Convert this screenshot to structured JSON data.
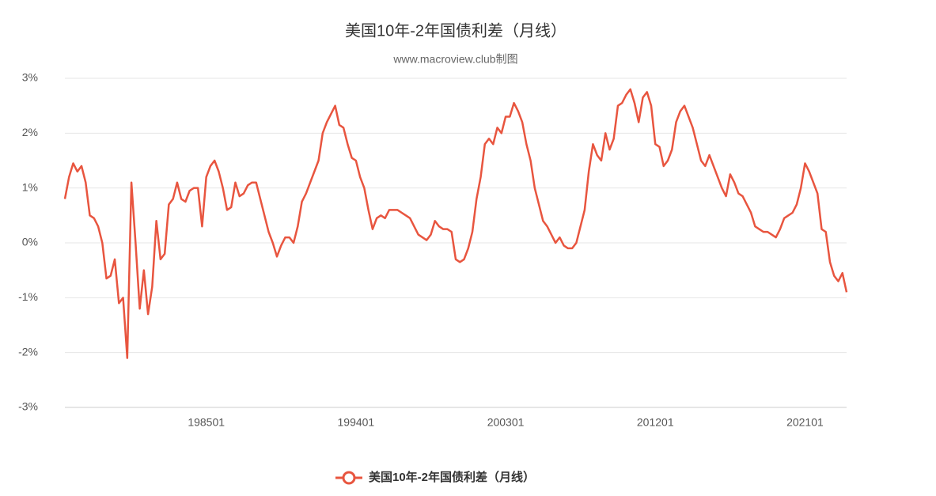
{
  "chart_data": {
    "type": "line",
    "title": "美国10年-2年国债利差（月线）",
    "subtitle": "www.macroview.club制图",
    "categories": [
      null,
      null,
      null,
      null,
      null,
      null,
      null,
      null,
      null,
      null,
      null,
      null,
      null,
      null,
      null,
      null,
      null,
      null,
      null,
      null,
      null,
      null,
      null,
      null,
      null,
      null,
      null,
      null,
      null,
      null,
      null,
      null,
      null,
      null,
      "198501",
      null,
      null,
      null,
      null,
      null,
      null,
      null,
      null,
      null,
      null,
      null,
      null,
      null,
      null,
      null,
      null,
      null,
      null,
      null,
      null,
      null,
      null,
      null,
      null,
      null,
      null,
      null,
      null,
      null,
      null,
      null,
      null,
      null,
      null,
      null,
      "199401",
      null,
      null,
      null,
      null,
      null,
      null,
      null,
      null,
      null,
      null,
      null,
      null,
      null,
      null,
      null,
      null,
      null,
      null,
      null,
      null,
      null,
      null,
      null,
      null,
      null,
      null,
      null,
      null,
      null,
      null,
      null,
      null,
      null,
      null,
      null,
      "200301",
      null,
      null,
      null,
      null,
      null,
      null,
      null,
      null,
      null,
      null,
      null,
      null,
      null,
      null,
      null,
      null,
      null,
      null,
      null,
      null,
      null,
      null,
      null,
      null,
      null,
      null,
      null,
      null,
      null,
      null,
      null,
      null,
      null,
      null,
      null,
      "201201",
      null,
      null,
      null,
      null,
      null,
      null,
      null,
      null,
      null,
      null,
      null,
      null,
      null,
      null,
      null,
      null,
      null,
      null,
      null,
      null,
      null,
      null,
      null,
      null,
      null,
      null,
      null,
      null,
      null,
      null,
      null,
      null,
      null,
      null,
      null,
      "202101",
      null,
      null,
      null,
      null,
      null,
      null,
      null,
      null,
      null,
      null
    ],
    "series": [
      {
        "name": "美国10年-2年国债利差（月线）",
        "color": "#e8553f",
        "values": [
          0.8,
          1.2,
          1.45,
          1.3,
          1.4,
          1.1,
          0.5,
          0.45,
          0.3,
          0.0,
          -0.65,
          -0.6,
          -0.3,
          -1.1,
          -1.0,
          -2.1,
          1.1,
          0.0,
          -1.2,
          -0.5,
          -1.3,
          -0.8,
          0.4,
          -0.3,
          -0.2,
          0.7,
          0.8,
          1.1,
          0.8,
          0.75,
          0.95,
          1.0,
          1.0,
          0.3,
          1.2,
          1.4,
          1.5,
          1.3,
          1.0,
          0.6,
          0.65,
          1.1,
          0.85,
          0.9,
          1.05,
          1.1,
          1.1,
          0.8,
          0.5,
          0.2,
          0.0,
          -0.25,
          -0.05,
          0.1,
          0.1,
          0.0,
          0.3,
          0.75,
          0.9,
          1.1,
          1.3,
          1.5,
          2.0,
          2.2,
          2.35,
          2.5,
          2.15,
          2.1,
          1.8,
          1.55,
          1.5,
          1.2,
          1.0,
          0.6,
          0.25,
          0.45,
          0.5,
          0.45,
          0.6,
          0.6,
          0.6,
          0.55,
          0.5,
          0.45,
          0.3,
          0.15,
          0.1,
          0.05,
          0.15,
          0.4,
          0.3,
          0.25,
          0.25,
          0.2,
          -0.3,
          -0.35,
          -0.3,
          -0.1,
          0.2,
          0.8,
          1.2,
          1.8,
          1.9,
          1.8,
          2.1,
          2.0,
          2.3,
          2.3,
          2.55,
          2.4,
          2.2,
          1.8,
          1.5,
          1.0,
          0.7,
          0.4,
          0.3,
          0.15,
          0.0,
          0.1,
          -0.05,
          -0.1,
          -0.1,
          0.0,
          0.3,
          0.6,
          1.3,
          1.8,
          1.6,
          1.5,
          2.0,
          1.7,
          1.9,
          2.5,
          2.55,
          2.7,
          2.8,
          2.55,
          2.2,
          2.65,
          2.75,
          2.5,
          1.8,
          1.75,
          1.4,
          1.5,
          1.7,
          2.2,
          2.4,
          2.5,
          2.3,
          2.1,
          1.8,
          1.5,
          1.4,
          1.6,
          1.4,
          1.2,
          1.0,
          0.85,
          1.25,
          1.1,
          0.9,
          0.85,
          0.7,
          0.55,
          0.3,
          0.25,
          0.2,
          0.2,
          0.15,
          0.1,
          0.25,
          0.45,
          0.5,
          0.55,
          0.7,
          1.0,
          1.45,
          1.3,
          1.1,
          0.9,
          0.25,
          0.2,
          -0.35,
          -0.6,
          -0.7,
          -0.55,
          -0.9
        ]
      }
    ],
    "ylim": [
      -3,
      3
    ],
    "yticks": [
      {
        "value": -3,
        "label": "-3%"
      },
      {
        "value": -2,
        "label": "-2%"
      },
      {
        "value": -1,
        "label": "-1%"
      },
      {
        "value": 0,
        "label": "0%"
      },
      {
        "value": 1,
        "label": "1%"
      },
      {
        "value": 2,
        "label": "2%"
      },
      {
        "value": 3,
        "label": "3%"
      }
    ],
    "grid": true
  }
}
